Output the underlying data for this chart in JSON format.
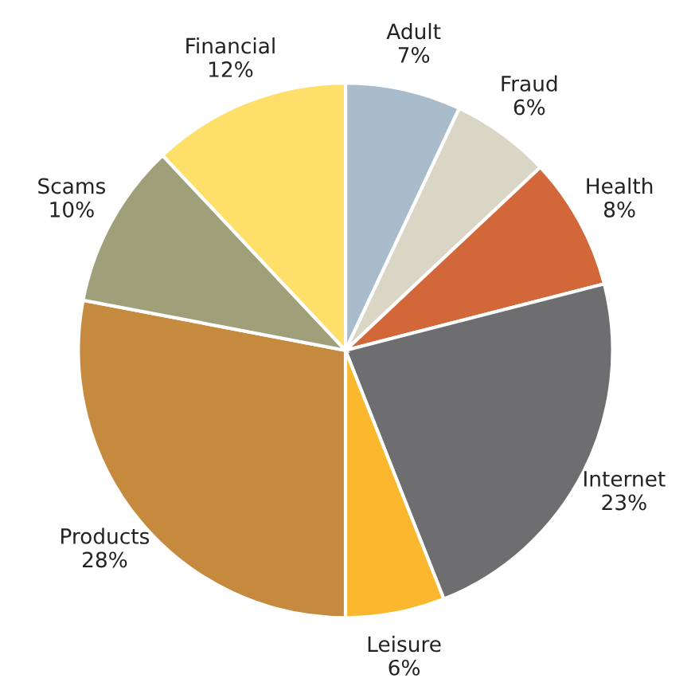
{
  "chart_data": {
    "type": "pie",
    "categories": [
      "Adult",
      "Fraud",
      "Health",
      "Internet",
      "Leisure",
      "Products",
      "Scams",
      "Financial"
    ],
    "values": [
      7,
      6,
      8,
      23,
      6,
      28,
      10,
      12
    ],
    "value_labels": [
      "7%",
      "6%",
      "8%",
      "23%",
      "6%",
      "28%",
      "10%",
      "12%"
    ],
    "colors": [
      "#a9bccb",
      "#d9d6c6",
      "#d2683a",
      "#6e6e70",
      "#fbb72e",
      "#c68a3e",
      "#9fa07a",
      "#fedf6a"
    ],
    "legend": false
  }
}
